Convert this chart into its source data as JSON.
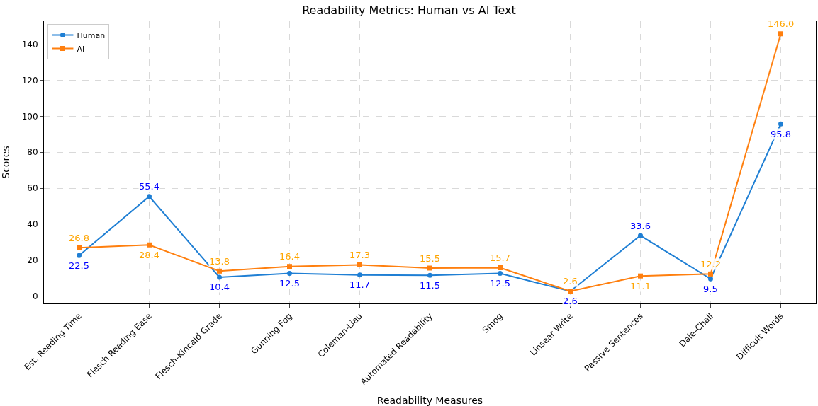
{
  "chart_data": {
    "type": "line",
    "title": "Readability Metrics: Human vs AI Text",
    "xlabel": "Readability Measures",
    "ylabel": "Scores",
    "categories": [
      "Est. Reading Time",
      "Flesch Reading Ease",
      "Flesch-Kincaid Grade",
      "Gunning Fog",
      "Coleman-Liau",
      "Automated Readability",
      "Smog",
      "Linsear Write",
      "Passive Sentences",
      "Dale-Chall",
      "Difficult Words"
    ],
    "series": [
      {
        "name": "Human",
        "color": "#1f7fd4",
        "marker": "circle",
        "values": [
          22.5,
          55.4,
          10.4,
          12.5,
          11.7,
          11.5,
          12.5,
          2.6,
          33.6,
          9.5,
          95.8
        ],
        "value_labels": [
          "22.5",
          "55.4",
          "10.4",
          "12.5",
          "11.7",
          "11.5",
          "12.5",
          "2.6",
          "33.6",
          "9.5",
          "95.8"
        ]
      },
      {
        "name": "AI",
        "color": "#ff7f0e",
        "marker": "square",
        "values": [
          26.8,
          28.4,
          13.8,
          16.4,
          17.3,
          15.5,
          15.7,
          2.6,
          11.1,
          12.2,
          146.0
        ],
        "value_labels": [
          "26.8",
          "28.4",
          "13.8",
          "16.4",
          "17.3",
          "15.5",
          "15.7",
          "2.6",
          "11.1",
          "12.2",
          "146.0"
        ]
      }
    ],
    "ylim": [
      -4.2,
      153
    ],
    "yticks": [
      0,
      20,
      40,
      60,
      80,
      100,
      120,
      140
    ],
    "grid": true,
    "legend": "top left",
    "line_style": "solid"
  }
}
